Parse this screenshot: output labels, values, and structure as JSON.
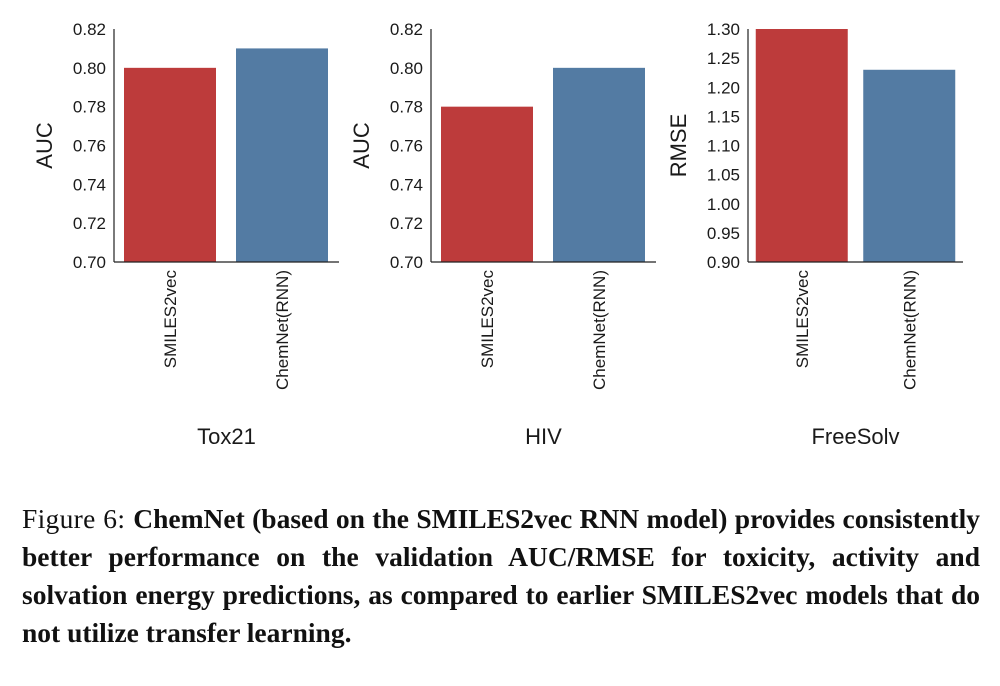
{
  "chart_data": [
    {
      "type": "bar",
      "categories": [
        "SMILES2vec",
        "ChemNet(RNN)"
      ],
      "values": [
        0.8,
        0.81
      ],
      "colors": [
        "#bd3b3b",
        "#537ba3"
      ],
      "ylabel": "AUC",
      "xlabel": "Tox21",
      "ylim": [
        0.7,
        0.82
      ],
      "yticks": [
        "0.70",
        "0.72",
        "0.74",
        "0.76",
        "0.78",
        "0.80",
        "0.82"
      ],
      "grid": false
    },
    {
      "type": "bar",
      "categories": [
        "SMILES2vec",
        "ChemNet(RNN)"
      ],
      "values": [
        0.78,
        0.8
      ],
      "colors": [
        "#bd3b3b",
        "#537ba3"
      ],
      "ylabel": "AUC",
      "xlabel": "HIV",
      "ylim": [
        0.7,
        0.82
      ],
      "yticks": [
        "0.70",
        "0.72",
        "0.74",
        "0.76",
        "0.78",
        "0.80",
        "0.82"
      ],
      "grid": false
    },
    {
      "type": "bar",
      "categories": [
        "SMILES2vec",
        "ChemNet(RNN)"
      ],
      "values": [
        1.3,
        1.23
      ],
      "colors": [
        "#bd3b3b",
        "#537ba3"
      ],
      "ylabel": "RMSE",
      "xlabel": "FreeSolv",
      "ylim": [
        0.9,
        1.3
      ],
      "yticks": [
        "0.90",
        "0.95",
        "1.00",
        "1.05",
        "1.10",
        "1.15",
        "1.20",
        "1.25",
        "1.30"
      ],
      "grid": false
    }
  ],
  "caption": {
    "label": "Figure 6:",
    "text": "ChemNet (based on the SMILES2vec RNN model) provides consistently better performance on the validation AUC/RMSE for toxicity, activity and solvation energy predictions, as compared to earlier SMILES2vec models that do not utilize transfer learning."
  }
}
